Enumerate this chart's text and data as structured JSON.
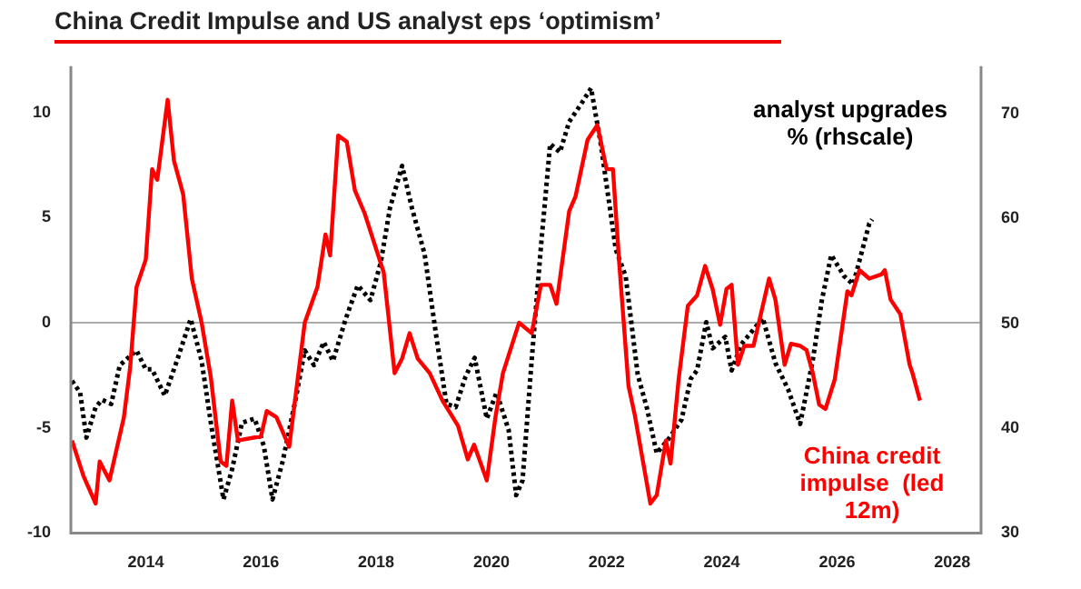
{
  "chart_data": {
    "type": "line",
    "title": "China Credit Impulse and US analyst eps ‘optimism’",
    "xlim": [
      2012.7,
      2028.5
    ],
    "xticks": [
      2014,
      2016,
      2018,
      2020,
      2022,
      2024,
      2026,
      2028
    ],
    "ylim": [
      -10,
      12.2
    ],
    "yticks": [
      -10,
      -5,
      0,
      5,
      10
    ],
    "y2lim": [
      30,
      74.5
    ],
    "y2ticks": [
      30,
      40,
      50,
      60,
      70
    ],
    "grid": false,
    "legend": false,
    "marker": "none",
    "ref_lines": [
      {
        "axis": "y",
        "value": 0,
        "color": "#aaaaaa"
      }
    ],
    "series": [
      {
        "name": "China credit impulse  (led 12m)",
        "color": "#ff0000",
        "line_style": "solid",
        "x": [
          2012.72,
          2012.92,
          2013.13,
          2013.2,
          2013.37,
          2013.62,
          2013.73,
          2013.84,
          2014.0,
          2014.11,
          2014.2,
          2014.38,
          2014.49,
          2014.65,
          2014.8,
          2014.97,
          2015.13,
          2015.3,
          2015.4,
          2015.5,
          2015.6,
          2016.0,
          2016.1,
          2016.27,
          2016.49,
          2016.76,
          2016.98,
          2017.12,
          2017.2,
          2017.34,
          2017.49,
          2017.63,
          2017.8,
          2018.0,
          2018.13,
          2018.32,
          2018.45,
          2018.58,
          2018.72,
          2018.93,
          2019.15,
          2019.42,
          2019.59,
          2019.7,
          2019.92,
          2020.07,
          2020.2,
          2020.48,
          2020.7,
          2020.86,
          2021.02,
          2021.13,
          2021.35,
          2021.46,
          2021.67,
          2021.84,
          2022.0,
          2022.11,
          2022.22,
          2022.38,
          2022.49,
          2022.76,
          2022.87,
          2023.03,
          2023.11,
          2023.25,
          2023.41,
          2023.57,
          2023.71,
          2023.84,
          2023.97,
          2024.08,
          2024.17,
          2024.28,
          2024.39,
          2024.55,
          2024.66,
          2024.82,
          2024.93,
          2025.09,
          2025.2,
          2025.36,
          2025.47,
          2025.58,
          2025.69,
          2025.8,
          2025.96,
          2026.18,
          2026.25,
          2026.39,
          2026.56,
          2026.77,
          2026.83,
          2026.93,
          2027.1,
          2027.26,
          2027.31,
          2027.44
        ],
        "values": [
          -5.6,
          -7.3,
          -8.6,
          -6.6,
          -7.5,
          -4.5,
          -2.1,
          1.7,
          3.0,
          7.3,
          6.8,
          10.6,
          7.7,
          6.1,
          2.1,
          0,
          -2.6,
          -6.6,
          -6.8,
          -3.7,
          -5.6,
          -5.4,
          -4.2,
          -4.5,
          -5.9,
          0,
          1.7,
          4.2,
          3.2,
          8.9,
          8.6,
          6.3,
          5.2,
          3.5,
          2.4,
          -2.4,
          -1.7,
          -0.5,
          -1.7,
          -2.4,
          -3.7,
          -4.9,
          -6.5,
          -5.8,
          -7.5,
          -4.5,
          -2.4,
          0,
          -0.5,
          1.8,
          1.8,
          0.9,
          5.3,
          6.0,
          8.7,
          9.4,
          7.3,
          7.3,
          2.8,
          -3.0,
          -4.4,
          -8.6,
          -8.2,
          -5.6,
          -6.7,
          -2.7,
          0.8,
          1.3,
          2.7,
          1.6,
          -0.1,
          1.6,
          1.8,
          -2.0,
          -1.1,
          -1.1,
          0.2,
          2.1,
          1.1,
          -2.0,
          -1.0,
          -1.1,
          -1.3,
          -2.4,
          -3.9,
          -4.1,
          -2.7,
          1.5,
          1.3,
          2.5,
          2.1,
          2.3,
          2.5,
          1.1,
          0.4,
          -2.0,
          -2.4,
          -3.7
        ]
      },
      {
        "name": "analyst upgrades % (rhscale)",
        "color": "#000000",
        "axis": "y2",
        "line_style": "dotted",
        "x": [
          2012.72,
          2012.86,
          2012.97,
          2013.13,
          2013.24,
          2013.4,
          2013.55,
          2013.84,
          2014.0,
          2014.11,
          2014.33,
          2014.54,
          2014.78,
          2014.97,
          2015.13,
          2015.35,
          2015.5,
          2015.67,
          2015.89,
          2016.05,
          2016.2,
          2016.38,
          2016.6,
          2016.76,
          2016.92,
          2017.09,
          2017.25,
          2017.47,
          2017.68,
          2017.9,
          2018.08,
          2018.24,
          2018.45,
          2018.62,
          2018.84,
          2019.05,
          2019.22,
          2019.38,
          2019.55,
          2019.71,
          2019.92,
          2020.09,
          2020.3,
          2020.43,
          2020.54,
          2020.7,
          2020.86,
          2021.02,
          2021.19,
          2021.35,
          2021.57,
          2021.73,
          2021.89,
          2022.16,
          2022.33,
          2022.54,
          2022.7,
          2022.87,
          2023.08,
          2023.3,
          2023.46,
          2023.57,
          2023.73,
          2023.84,
          2024.06,
          2024.17,
          2024.34,
          2024.55,
          2024.71,
          2024.93,
          2025.15,
          2025.36,
          2025.58,
          2025.74,
          2025.9,
          2026.12,
          2026.28,
          2026.56,
          2026.61
        ],
        "values": [
          44.5,
          43.4,
          39.1,
          42.0,
          42.7,
          42.3,
          46.0,
          47.4,
          45.6,
          45.6,
          43.1,
          46.4,
          50.4,
          46.4,
          40.5,
          33.2,
          36.1,
          40.5,
          40.9,
          38.3,
          33.2,
          36.9,
          42.7,
          47.4,
          46.0,
          48.2,
          46.4,
          50.4,
          53.6,
          52.2,
          55.8,
          61.0,
          65.0,
          61.0,
          56.6,
          48.5,
          42.3,
          42.0,
          44.9,
          46.7,
          40.9,
          43.4,
          39.8,
          33.6,
          35.0,
          46.5,
          57.3,
          67.1,
          66.3,
          69.2,
          71.0,
          72.4,
          67.4,
          57.0,
          54.5,
          45.1,
          41.9,
          37.6,
          39.0,
          40.8,
          44.7,
          45.5,
          50.1,
          47.6,
          48.7,
          45.5,
          48.0,
          49.4,
          50.5,
          46.2,
          43.7,
          40.4,
          46.5,
          52.3,
          56.5,
          54.5,
          53.7,
          59.5,
          59.9
        ]
      }
    ]
  }
}
